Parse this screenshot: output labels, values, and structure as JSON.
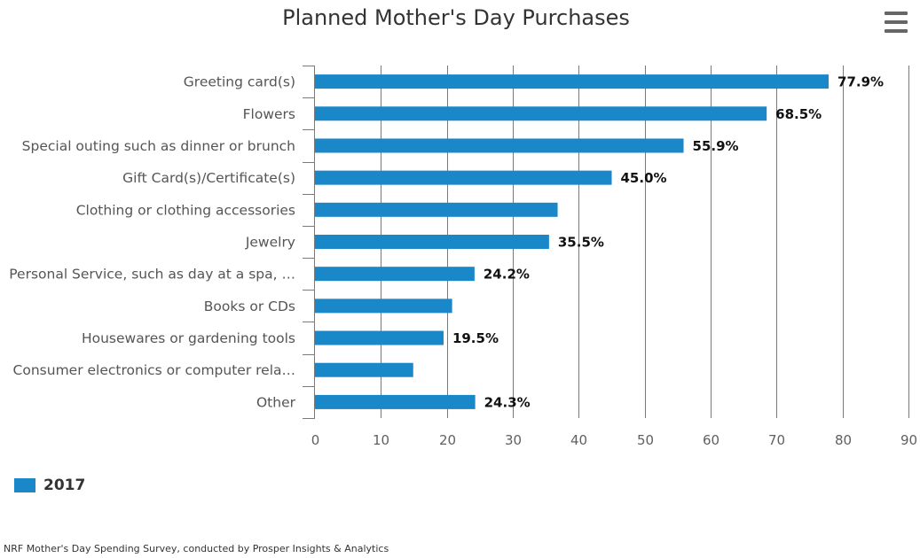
{
  "chart_data": {
    "type": "bar",
    "orientation": "horizontal",
    "title": "Planned Mother's Day Purchases",
    "categories": [
      "Greeting card(s)",
      "Flowers",
      "Special outing such as dinner or brunch",
      "Gift Card(s)/Certificate(s)",
      "Clothing or clothing accessories",
      "Jewelry",
      "Personal Service, such as day at a spa, …",
      "Books or CDs",
      "Housewares or gardening tools",
      "Consumer electronics or computer rela…",
      "Other"
    ],
    "series": [
      {
        "name": "2017",
        "color": "#1a87c9",
        "values": [
          77.9,
          68.5,
          55.9,
          45.0,
          36.8,
          35.5,
          24.2,
          20.8,
          19.5,
          14.9,
          24.3
        ],
        "data_labels": [
          "77.9%",
          "68.5%",
          "55.9%",
          "45.0%",
          "",
          "35.5%",
          "24.2%",
          "",
          "19.5%",
          "",
          "24.3%"
        ]
      }
    ],
    "xlim": [
      0,
      90
    ],
    "xticks": [
      "0",
      "10",
      "20",
      "30",
      "40",
      "50",
      "60",
      "70",
      "80",
      "90"
    ],
    "grid": true,
    "legend_position": "bottom-left"
  },
  "legend": {
    "label": "2017",
    "color": "#1a87c9"
  },
  "menu": {
    "icon": "hamburger-menu-icon"
  },
  "source": "NRF Mother's Day Spending Survey, conducted by Prosper Insights & Analytics"
}
